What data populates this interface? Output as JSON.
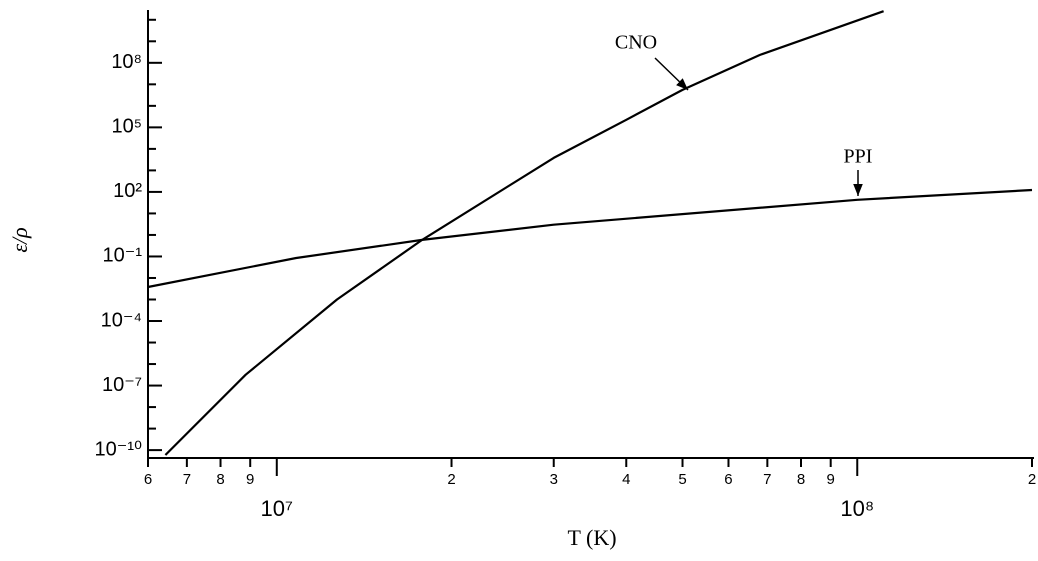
{
  "chart_data": {
    "type": "line",
    "xlabel": "T (K)",
    "ylabel": "ε/ρ",
    "log_x": true,
    "log_y": true,
    "xlim": [
      6000000,
      200000000
    ],
    "ylim": [
      4.3e-11,
      23000000000.0
    ],
    "xticks": [
      {
        "value": 6000000,
        "label": "6"
      },
      {
        "value": 7000000,
        "label": "7"
      },
      {
        "value": 8000000,
        "label": "8"
      },
      {
        "value": 9000000,
        "label": "9"
      },
      {
        "value": 10000000,
        "label": "10⁷"
      },
      {
        "value": 20000000,
        "label": "2"
      },
      {
        "value": 30000000,
        "label": "3"
      },
      {
        "value": 40000000,
        "label": "4"
      },
      {
        "value": 50000000,
        "label": "5"
      },
      {
        "value": 60000000,
        "label": "6"
      },
      {
        "value": 70000000,
        "label": "7"
      },
      {
        "value": 80000000,
        "label": "8"
      },
      {
        "value": 90000000,
        "label": "9"
      },
      {
        "value": 100000000,
        "label": "10⁸"
      },
      {
        "value": 200000000,
        "label": "2"
      }
    ],
    "yticks": [
      {
        "value": 1e-10,
        "label": "10⁻¹⁰"
      },
      {
        "value": 1e-07,
        "label": "10⁻⁷"
      },
      {
        "value": 0.0001,
        "label": "10⁻⁴"
      },
      {
        "value": 0.1,
        "label": "10⁻¹"
      },
      {
        "value": 100,
        "label": "10²"
      },
      {
        "value": 100000,
        "label": "10⁵"
      },
      {
        "value": 100000000,
        "label": "10⁸"
      }
    ],
    "yticks_minor": [
      1e-09,
      1e-08,
      1e-06,
      1e-05,
      0.001,
      0.01,
      1,
      10,
      1000,
      10000,
      1000000,
      10000000,
      1000000000,
      10000000000
    ],
    "series": [
      {
        "name": "CNO",
        "color": "#000000",
        "x": [
          6430000,
          8840000,
          12700000,
          17800000,
          30000000,
          40000000,
          50000000,
          68000000,
          111000000
        ],
        "values": [
          5.9e-11,
          3.2e-07,
          0.001,
          0.59,
          3800,
          224000,
          5500000,
          234000000,
          25000000000
        ]
      },
      {
        "name": "PPI",
        "color": "#000000",
        "x": [
          6000000,
          10800000,
          17800000,
          30000000,
          100000000,
          200000000
        ],
        "values": [
          0.0038,
          0.085,
          0.59,
          3,
          43,
          123
        ]
      }
    ]
  }
}
